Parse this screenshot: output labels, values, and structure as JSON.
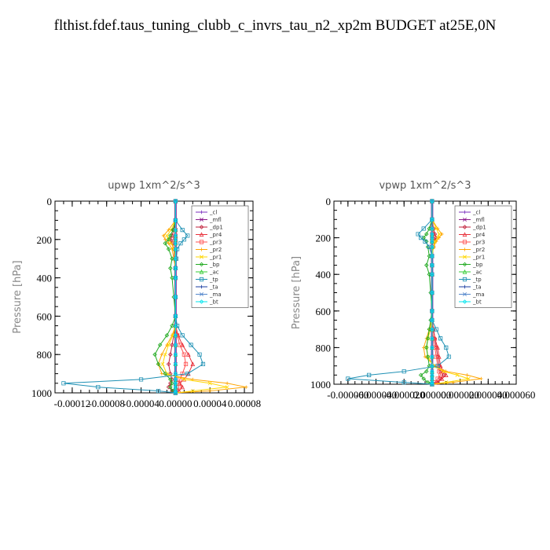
{
  "page_title": "flthist.fdef.taus_tuning_clubb_c_invrs_tau_n2_xp2m  BUDGET at25E,0N",
  "colors": {
    "cl": "#7b2fbe",
    "mfl": "#8b1a8b",
    "dp1": "#c0203a",
    "pr4": "#e8303a",
    "pr3": "#ff5050",
    "pr2": "#ffa500",
    "pr1": "#ffd700",
    "bp": "#22aa22",
    "ac": "#33cc33",
    "tp": "#1e90b4",
    "ta": "#1a3ca0",
    "ma": "#5588cc",
    "bt": "#00e5ee"
  },
  "chart_data": [
    {
      "type": "line",
      "title": "upwp   1xm^2/s^3",
      "ylabel": "Pressure [hPa]",
      "xlabel": "",
      "xlim": [
        -0.00014,
        9e-05
      ],
      "ylim": [
        1000,
        0
      ],
      "xticks": [
        -0.00012,
        -8e-05,
        -4e-05,
        0.0,
        4e-05,
        8e-05
      ],
      "xtick_labels": [
        "-0.00012",
        "-0.00008",
        "-0.00004",
        "0.00000",
        "0.00004",
        "0.00008"
      ],
      "yticks": [
        0,
        200,
        400,
        600,
        800,
        1000
      ],
      "ytick_labels": [
        "0",
        "200",
        "400",
        "600",
        "800",
        "1000"
      ],
      "legend": [
        "_cl",
        "_mfl",
        "_dp1",
        "_pr4",
        "_pr3",
        "_pr2",
        "_pr1",
        "_bp",
        "_ac",
        "_tp",
        "_ta",
        "_ma",
        "_bt"
      ],
      "legend_position": "top-right",
      "y": [
        0,
        100,
        150,
        180,
        200,
        220,
        250,
        300,
        350,
        400,
        500,
        600,
        650,
        700,
        750,
        800,
        850,
        900,
        930,
        950,
        970,
        990,
        1000
      ],
      "series": [
        {
          "name": "_cl",
          "key": "cl",
          "values": [
            0,
            0,
            0,
            0,
            0,
            0,
            0,
            0,
            0,
            0,
            0,
            0,
            0,
            0,
            0,
            0,
            0,
            0,
            0,
            0,
            0,
            0,
            0
          ]
        },
        {
          "name": "_mfl",
          "key": "mfl",
          "values": [
            0,
            0,
            0,
            0,
            0,
            0,
            0,
            0,
            0,
            0,
            0,
            0,
            0,
            0,
            0,
            0,
            0,
            0,
            0,
            0,
            0,
            0,
            0
          ]
        },
        {
          "name": "_dp1",
          "key": "dp1",
          "values": [
            0,
            0,
            -2e-06,
            -4e-06,
            -6e-06,
            -4e-06,
            -2e-06,
            -1e-06,
            0,
            0,
            0,
            0,
            0,
            -2e-06,
            -4e-06,
            -6e-06,
            -8e-06,
            -6e-06,
            -4e-06,
            -6e-06,
            -8e-06,
            -4e-06,
            0
          ]
        },
        {
          "name": "_pr4",
          "key": "pr4",
          "values": [
            0,
            0,
            0,
            -1e-06,
            -2e-06,
            -1e-06,
            0,
            0,
            0,
            0,
            0,
            0,
            0,
            3e-06,
            8e-06,
            1.5e-05,
            2e-05,
            1.5e-05,
            1e-05,
            5e-06,
            8e-06,
            4e-06,
            0
          ]
        },
        {
          "name": "_pr3",
          "key": "pr3",
          "values": [
            0,
            0,
            0,
            0,
            0,
            0,
            0,
            0,
            0,
            0,
            0,
            0,
            0,
            2e-06,
            5e-06,
            1e-05,
            1.2e-05,
            8e-06,
            5e-06,
            3e-06,
            4e-06,
            2e-06,
            0
          ]
        },
        {
          "name": "_pr2",
          "key": "pr2",
          "values": [
            0,
            0,
            -8e-06,
            -1.4e-05,
            -1.2e-05,
            -8e-06,
            -4e-06,
            -2e-06,
            0,
            0,
            0,
            0,
            0,
            -4e-06,
            -1e-05,
            -1.6e-05,
            -2e-05,
            -1.6e-05,
            2e-05,
            6e-05,
            8.2e-05,
            4e-05,
            0
          ]
        },
        {
          "name": "_pr1",
          "key": "pr1",
          "values": [
            0,
            0,
            -5e-06,
            -1e-05,
            -8e-06,
            -5e-06,
            -2e-06,
            0,
            0,
            0,
            0,
            0,
            0,
            -3e-06,
            -8e-06,
            -1.2e-05,
            -1.5e-05,
            -1e-05,
            1e-05,
            4e-05,
            6e-05,
            2e-05,
            0
          ]
        },
        {
          "name": "_bp",
          "key": "bp",
          "values": [
            0,
            0,
            -3e-06,
            -6e-06,
            -8e-06,
            -1.2e-05,
            -8e-06,
            -4e-06,
            -6e-06,
            -4e-06,
            -2e-06,
            0,
            -4e-06,
            -1e-05,
            -1.8e-05,
            -2.4e-05,
            -2e-05,
            -1.2e-05,
            -6e-06,
            -4e-06,
            -6e-06,
            -3e-06,
            0
          ]
        },
        {
          "name": "_ac",
          "key": "ac",
          "values": [
            0,
            0,
            0,
            0,
            0,
            0,
            0,
            0,
            0,
            0,
            0,
            0,
            0,
            0,
            0,
            0,
            0,
            0,
            0,
            0,
            0,
            0,
            0
          ]
        },
        {
          "name": "_tp",
          "key": "tp",
          "values": [
            0,
            0,
            8e-06,
            1.4e-05,
            1e-05,
            6e-06,
            2e-06,
            1e-06,
            0,
            0,
            0,
            0,
            2e-06,
            8e-06,
            1.8e-05,
            2.8e-05,
            3.2e-05,
            1.4e-05,
            -4e-05,
            -0.00013,
            -9e-05,
            -2e-05,
            0
          ]
        },
        {
          "name": "_ta",
          "key": "ta",
          "values": [
            0,
            0,
            0,
            0,
            0,
            0,
            0,
            0,
            0,
            0,
            0,
            0,
            0,
            0,
            0,
            0,
            0,
            0,
            0,
            0,
            0,
            0,
            0
          ]
        },
        {
          "name": "_ma",
          "key": "ma",
          "values": [
            0,
            0,
            0,
            0,
            0,
            0,
            0,
            0,
            0,
            0,
            0,
            0,
            0,
            0,
            0,
            0,
            0,
            0,
            0,
            0,
            0,
            0,
            0
          ]
        },
        {
          "name": "_bt",
          "key": "bt",
          "values": [
            0,
            0,
            0,
            0,
            0,
            0,
            0,
            0,
            0,
            0,
            0,
            0,
            0,
            0,
            0,
            0,
            0,
            0,
            0,
            0,
            0,
            0,
            0
          ]
        }
      ]
    },
    {
      "type": "line",
      "title": "vpwp   1xm^2/s^3",
      "ylabel": "Pressure [hPa]",
      "xlabel": "",
      "xlim": [
        -7e-05,
        6e-05
      ],
      "ylim": [
        1000,
        0
      ],
      "xticks": [
        -6e-05,
        -4e-05,
        -2e-05,
        0.0,
        2e-05,
        4e-05,
        6e-05
      ],
      "xtick_labels": [
        "-0.000060",
        "-0.000040",
        "-0.000020",
        "0.000000",
        "0.000020",
        "0.000040",
        "0.000060"
      ],
      "yticks": [
        0,
        200,
        400,
        600,
        800,
        1000
      ],
      "ytick_labels": [
        "0",
        "200",
        "400",
        "600",
        "800",
        "1000"
      ],
      "legend": [
        "_cl",
        "_mfl",
        "_dp1",
        "_pr4",
        "_pr3",
        "_pr2",
        "_pr1",
        "_bp",
        "_ac",
        "_tp",
        "_ta",
        "_ma",
        "_bt"
      ],
      "legend_position": "top-right",
      "y": [
        0,
        100,
        150,
        180,
        200,
        220,
        250,
        300,
        350,
        400,
        500,
        600,
        650,
        700,
        750,
        800,
        850,
        900,
        930,
        950,
        970,
        990,
        1000
      ],
      "series": [
        {
          "name": "_cl",
          "key": "cl",
          "values": [
            0,
            0,
            0,
            0,
            0,
            0,
            0,
            0,
            0,
            0,
            0,
            0,
            0,
            0,
            0,
            0,
            0,
            0,
            0,
            0,
            0,
            0,
            0
          ]
        },
        {
          "name": "_mfl",
          "key": "mfl",
          "values": [
            0,
            0,
            0,
            0,
            0,
            0,
            0,
            0,
            0,
            0,
            0,
            0,
            0,
            0,
            0,
            0,
            0,
            0,
            0,
            0,
            0,
            0,
            0
          ]
        },
        {
          "name": "_dp1",
          "key": "dp1",
          "values": [
            0,
            0,
            1e-06,
            2e-06,
            3e-06,
            2e-06,
            1e-06,
            0,
            0,
            0,
            0,
            0,
            0,
            1e-06,
            2e-06,
            3e-06,
            4e-06,
            5e-06,
            6e-06,
            8e-06,
            6e-06,
            3e-06,
            0
          ]
        },
        {
          "name": "_pr4",
          "key": "pr4",
          "values": [
            0,
            0,
            0,
            1e-06,
            1e-06,
            0,
            0,
            0,
            0,
            0,
            0,
            0,
            0,
            1e-06,
            2e-06,
            4e-06,
            5e-06,
            6e-06,
            8e-06,
            1e-05,
            7e-06,
            4e-06,
            0
          ]
        },
        {
          "name": "_pr3",
          "key": "pr3",
          "values": [
            0,
            0,
            0,
            0,
            0,
            0,
            0,
            0,
            0,
            0,
            0,
            0,
            0,
            0,
            1e-06,
            2e-06,
            3e-06,
            4e-06,
            5e-06,
            6e-06,
            4e-06,
            2e-06,
            0
          ]
        },
        {
          "name": "_pr2",
          "key": "pr2",
          "values": [
            0,
            0,
            4e-06,
            7e-06,
            5e-06,
            3e-06,
            1e-06,
            0,
            0,
            0,
            0,
            0,
            0,
            -2e-06,
            -4e-06,
            -6e-06,
            -5e-06,
            2e-06,
            1e-05,
            2.5e-05,
            3.5e-05,
            1.5e-05,
            0
          ]
        },
        {
          "name": "_pr1",
          "key": "pr1",
          "values": [
            0,
            0,
            3e-06,
            5e-06,
            4e-06,
            2e-06,
            1e-06,
            0,
            0,
            0,
            0,
            0,
            0,
            -1e-06,
            -3e-06,
            -4e-06,
            -3e-06,
            1e-06,
            8e-06,
            1.8e-05,
            2.6e-05,
            1e-05,
            0
          ]
        },
        {
          "name": "_bp",
          "key": "bp",
          "values": [
            0,
            0,
            -2e-06,
            -4e-06,
            -6e-06,
            -4e-06,
            -3e-06,
            -2e-06,
            -4e-06,
            -2e-06,
            -1e-06,
            0,
            -1e-06,
            -2e-06,
            -3e-06,
            -4e-06,
            -3e-06,
            -2e-06,
            -4e-06,
            -8e-06,
            -6e-06,
            -3e-06,
            0
          ]
        },
        {
          "name": "_ac",
          "key": "ac",
          "values": [
            0,
            0,
            0,
            0,
            0,
            0,
            0,
            0,
            0,
            0,
            0,
            0,
            0,
            0,
            0,
            0,
            0,
            0,
            0,
            0,
            0,
            0,
            0
          ]
        },
        {
          "name": "_tp",
          "key": "tp",
          "values": [
            0,
            0,
            -6e-06,
            -1e-05,
            -8e-06,
            -5e-06,
            -2e-06,
            0,
            0,
            0,
            0,
            0,
            0,
            3e-06,
            6e-06,
            1e-05,
            1.2e-05,
            4e-06,
            -2e-05,
            -4.5e-05,
            -6e-05,
            -2e-05,
            0
          ]
        },
        {
          "name": "_ta",
          "key": "ta",
          "values": [
            0,
            0,
            0,
            0,
            0,
            0,
            0,
            0,
            0,
            0,
            0,
            0,
            0,
            0,
            0,
            0,
            0,
            0,
            0,
            0,
            0,
            0,
            0
          ]
        },
        {
          "name": "_ma",
          "key": "ma",
          "values": [
            0,
            0,
            0,
            0,
            0,
            0,
            0,
            0,
            0,
            0,
            0,
            0,
            0,
            0,
            0,
            0,
            0,
            0,
            0,
            0,
            0,
            0,
            0
          ]
        },
        {
          "name": "_bt",
          "key": "bt",
          "values": [
            0,
            0,
            0,
            0,
            0,
            0,
            0,
            0,
            0,
            0,
            0,
            0,
            0,
            0,
            0,
            0,
            0,
            0,
            0,
            0,
            0,
            0,
            0
          ]
        }
      ]
    }
  ]
}
